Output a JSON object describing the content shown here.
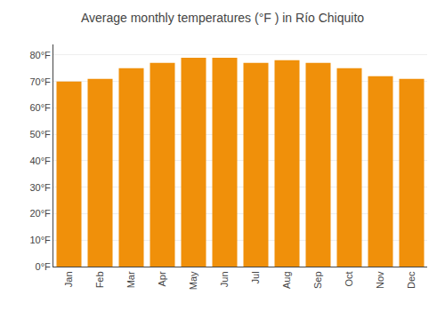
{
  "chart_data": {
    "type": "bar",
    "title": "Average monthly temperatures (°F ) in Río Chiquito",
    "categories": [
      "Jan",
      "Feb",
      "Mar",
      "Apr",
      "May",
      "Jun",
      "Jul",
      "Aug",
      "Sep",
      "Oct",
      "Nov",
      "Dec"
    ],
    "values": [
      70,
      71,
      75,
      77,
      79,
      79,
      77,
      78,
      77,
      75,
      72,
      71
    ],
    "color": "#F0900A",
    "ylim": [
      0,
      84
    ],
    "yticks": [
      {
        "value": 0,
        "label": "0°F"
      },
      {
        "value": 10,
        "label": "10°F"
      },
      {
        "value": 20,
        "label": "20°F"
      },
      {
        "value": 30,
        "label": "30°F"
      },
      {
        "value": 40,
        "label": "40°F"
      },
      {
        "value": 50,
        "label": "50°F"
      },
      {
        "value": 60,
        "label": "60°F"
      },
      {
        "value": 70,
        "label": "70°F"
      },
      {
        "value": 80,
        "label": "80°F"
      }
    ],
    "grid": true
  }
}
